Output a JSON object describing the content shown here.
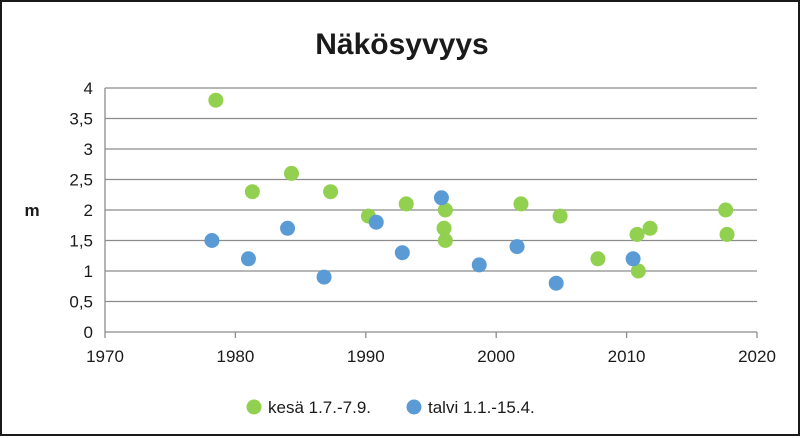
{
  "chart_data": {
    "type": "scatter",
    "title": "Näkösyvyys",
    "ylabel": "m",
    "xlabel": "",
    "xlim": [
      1970,
      2020
    ],
    "ylim": [
      0,
      4
    ],
    "x_ticks": [
      "1970",
      "1980",
      "1990",
      "2000",
      "2010",
      "2020"
    ],
    "y_ticks": [
      "0",
      "0,5",
      "1",
      "1,5",
      "2",
      "2,5",
      "3",
      "3,5",
      "4"
    ],
    "grid": "horizontal",
    "legend_position": "bottom",
    "series": [
      {
        "name": "kesä 1.7.-7.9.",
        "color": "#92d050",
        "points": [
          {
            "x": 1978.5,
            "y": 3.8
          },
          {
            "x": 1981.3,
            "y": 2.3
          },
          {
            "x": 1984.3,
            "y": 2.6
          },
          {
            "x": 1987.3,
            "y": 2.3
          },
          {
            "x": 1990.2,
            "y": 1.9
          },
          {
            "x": 1993.1,
            "y": 2.1
          },
          {
            "x": 1996.1,
            "y": 2.0
          },
          {
            "x": 1996.0,
            "y": 1.7
          },
          {
            "x": 1996.1,
            "y": 1.5
          },
          {
            "x": 2001.9,
            "y": 2.1
          },
          {
            "x": 2004.9,
            "y": 1.9
          },
          {
            "x": 2007.8,
            "y": 1.2
          },
          {
            "x": 2010.8,
            "y": 1.6
          },
          {
            "x": 2010.9,
            "y": 1.0
          },
          {
            "x": 2011.8,
            "y": 1.7
          },
          {
            "x": 2017.6,
            "y": 2.0
          },
          {
            "x": 2017.7,
            "y": 1.6
          }
        ]
      },
      {
        "name": "talvi 1.1.-15.4.",
        "color": "#5b9bd5",
        "points": [
          {
            "x": 1978.2,
            "y": 1.5
          },
          {
            "x": 1981.0,
            "y": 1.2
          },
          {
            "x": 1984.0,
            "y": 1.7
          },
          {
            "x": 1986.8,
            "y": 0.9
          },
          {
            "x": 1990.8,
            "y": 1.8
          },
          {
            "x": 1992.8,
            "y": 1.3
          },
          {
            "x": 1995.8,
            "y": 2.2
          },
          {
            "x": 1998.7,
            "y": 1.1
          },
          {
            "x": 2001.6,
            "y": 1.4
          },
          {
            "x": 2004.6,
            "y": 0.8
          },
          {
            "x": 2010.5,
            "y": 1.2
          }
        ]
      }
    ]
  }
}
